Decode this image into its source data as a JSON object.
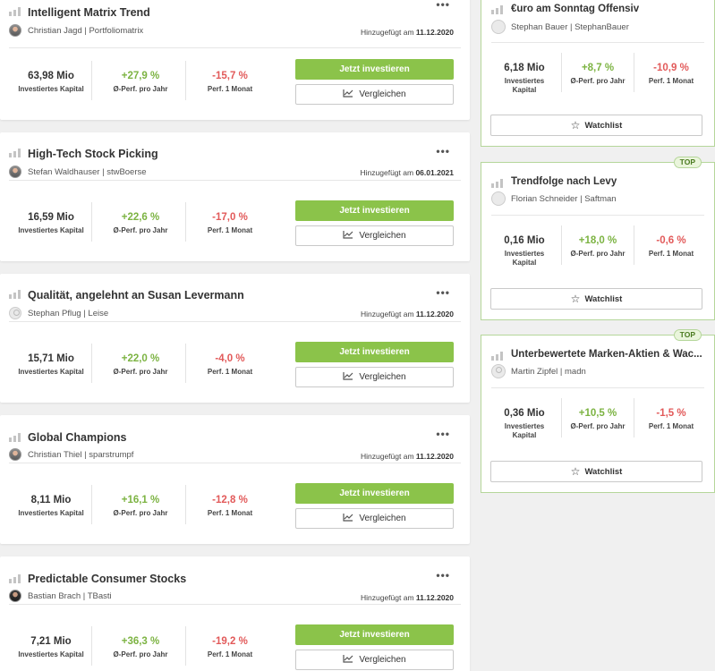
{
  "labels": {
    "invested": "Investiertes Kapital",
    "invested_line1": "Investiertes",
    "invested_line2": "Kapital",
    "perf_year": "Ø-Perf. pro Jahr",
    "perf_month": "Perf. 1 Monat",
    "invest_button": "Jetzt investieren",
    "compare_button": "Vergleichen",
    "watchlist_button": "Watchlist",
    "added_prefix": "Hinzugefügt am",
    "top_badge": "TOP",
    "more": "•••"
  },
  "cards": [
    {
      "title": "Intelligent Matrix Trend",
      "author": "Christian Jagd | Portfoliomatrix",
      "added": "11.12.2020",
      "capital": "63,98 Mio",
      "perf_year": "+27,9 %",
      "perf_month": "-15,7 %",
      "avatar": "photo"
    },
    {
      "title": "High-Tech Stock Picking",
      "author": "Stefan Waldhauser | stwBoerse",
      "added": "06.01.2021",
      "capital": "16,59 Mio",
      "perf_year": "+22,6 %",
      "perf_month": "-17,0 %",
      "avatar": "photo"
    },
    {
      "title": "Qualität, angelehnt an Susan Levermann",
      "author": "Stephan Pflug | Leise",
      "added": "11.12.2020",
      "capital": "15,71 Mio",
      "perf_year": "+22,0 %",
      "perf_month": "-4,0 %",
      "avatar": "blank"
    },
    {
      "title": "Global Champions",
      "author": "Christian Thiel | sparstrumpf",
      "added": "11.12.2020",
      "capital": "8,11 Mio",
      "perf_year": "+16,1 %",
      "perf_month": "-12,8 %",
      "avatar": "photo"
    },
    {
      "title": "Predictable Consumer Stocks",
      "author": "Bastian Brach | TBasti",
      "added": "11.12.2020",
      "capital": "7,21 Mio",
      "perf_year": "+36,3 %",
      "perf_month": "-19,2 %",
      "avatar": "dark"
    }
  ],
  "side_cards": [
    {
      "title": "€uro am Sonntag Offensiv",
      "author": "Stephan Bauer | StephanBauer",
      "capital": "6,18 Mio",
      "perf_year": "+8,7 %",
      "perf_month": "-10,9 %",
      "top": false
    },
    {
      "title": "Trendfolge nach Levy",
      "author": "Florian Schneider | Saftman",
      "capital": "0,16 Mio",
      "perf_year": "+18,0 %",
      "perf_month": "-0,6 %",
      "top": true
    },
    {
      "title": "Unterbewertete Marken-Aktien & Wac...",
      "author": "Martin Zipfel | madn",
      "capital": "0,36 Mio",
      "perf_year": "+10,5 %",
      "perf_month": "-1,5 %",
      "top": true
    }
  ],
  "colors": {
    "accent_green": "#8bc34a",
    "positive": "#7cb342",
    "negative": "#e25a5a",
    "side_border": "#b5d69a"
  }
}
